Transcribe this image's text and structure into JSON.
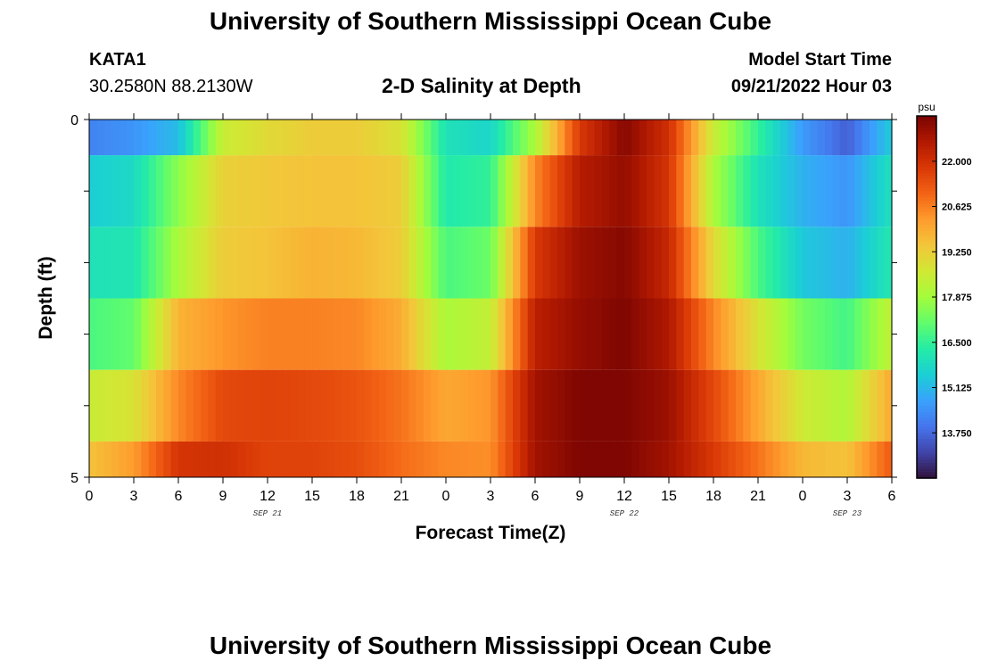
{
  "header": {
    "title": "University of Southern Mississippi Ocean Cube",
    "station": "KATA1",
    "coordinates": "30.2580N  88.2130W",
    "subtitle": "2-D Salinity at Depth",
    "model_start_label": "Model Start Time",
    "model_start_value": "09/21/2022 Hour 03"
  },
  "footer": {
    "title": "University of Southern Mississippi Ocean Cube"
  },
  "chart_data": {
    "type": "heatmap",
    "title": "2-D Salinity at Depth",
    "xlabel": "Forecast Time(Z)",
    "ylabel": "Depth (ft)",
    "x_ticks": [
      "0",
      "3",
      "6",
      "9",
      "12",
      "15",
      "18",
      "21",
      "0",
      "3",
      "6",
      "9",
      "12",
      "15",
      "18",
      "21",
      "0",
      "3",
      "6"
    ],
    "x_range_hours": [
      0,
      54
    ],
    "date_labels": [
      {
        "text": "SEP 21",
        "hour": 12
      },
      {
        "text": "SEP 22",
        "hour": 36
      },
      {
        "text": "SEP 23",
        "hour": 51
      }
    ],
    "y_ticks": [
      "0",
      "5"
    ],
    "y_range_ft": [
      0,
      5
    ],
    "depth_layers": [
      0,
      1,
      2,
      3,
      4,
      5
    ],
    "colorbar": {
      "unit": "psu",
      "min": 12.375,
      "max": 23.375,
      "ticks": [
        "22.000",
        "20.625",
        "19.250",
        "17.875",
        "16.500",
        "15.125",
        "13.750"
      ],
      "colors": [
        "#30123b",
        "#4145ab",
        "#4675ed",
        "#39a2fc",
        "#1bcfd4",
        "#24eca6",
        "#61fc6c",
        "#a4fc3b",
        "#d1e834",
        "#f3c63a",
        "#fe9b2d",
        "#f36315",
        "#d93806",
        "#b11901",
        "#7a0402"
      ]
    },
    "series_note": "Salinity (psu) per depth layer, sampled every 3 hours from hour 0 to 54",
    "series": [
      {
        "name": "0 ft",
        "values": [
          14.2,
          14.5,
          15.2,
          18.5,
          19.0,
          19.3,
          19.3,
          18.8,
          16.0,
          15.7,
          18.0,
          21.8,
          23.2,
          22.0,
          18.5,
          16.5,
          14.6,
          13.6,
          15.5
        ]
      },
      {
        "name": "1 ft",
        "values": [
          15.5,
          15.8,
          17.6,
          19.2,
          19.4,
          19.5,
          19.5,
          19.3,
          16.2,
          16.5,
          20.5,
          22.5,
          23.0,
          21.9,
          18.0,
          16.0,
          15.0,
          14.5,
          16.0
        ]
      },
      {
        "name": "2 ft",
        "values": [
          16.0,
          16.1,
          18.0,
          19.3,
          19.5,
          19.8,
          19.7,
          19.3,
          16.8,
          17.2,
          21.8,
          22.9,
          23.2,
          22.2,
          19.0,
          16.8,
          15.4,
          15.0,
          16.2
        ]
      },
      {
        "name": "3 ft",
        "values": [
          16.8,
          17.1,
          19.8,
          20.3,
          20.6,
          20.6,
          20.5,
          19.9,
          18.0,
          18.4,
          22.4,
          23.0,
          23.3,
          22.6,
          20.5,
          18.8,
          17.3,
          16.7,
          18.4
        ]
      },
      {
        "name": "4 ft",
        "values": [
          18.5,
          18.8,
          20.5,
          21.5,
          21.6,
          21.5,
          21.3,
          20.8,
          20.0,
          20.3,
          22.8,
          23.3,
          23.3,
          22.9,
          21.5,
          20.0,
          18.6,
          18.1,
          20.0
        ]
      },
      {
        "name": "5 ft",
        "values": [
          19.5,
          20.2,
          21.9,
          22.0,
          21.6,
          21.6,
          21.4,
          20.9,
          20.5,
          20.4,
          22.8,
          23.3,
          23.3,
          22.8,
          21.8,
          20.8,
          19.7,
          19.5,
          21.2
        ]
      }
    ]
  }
}
